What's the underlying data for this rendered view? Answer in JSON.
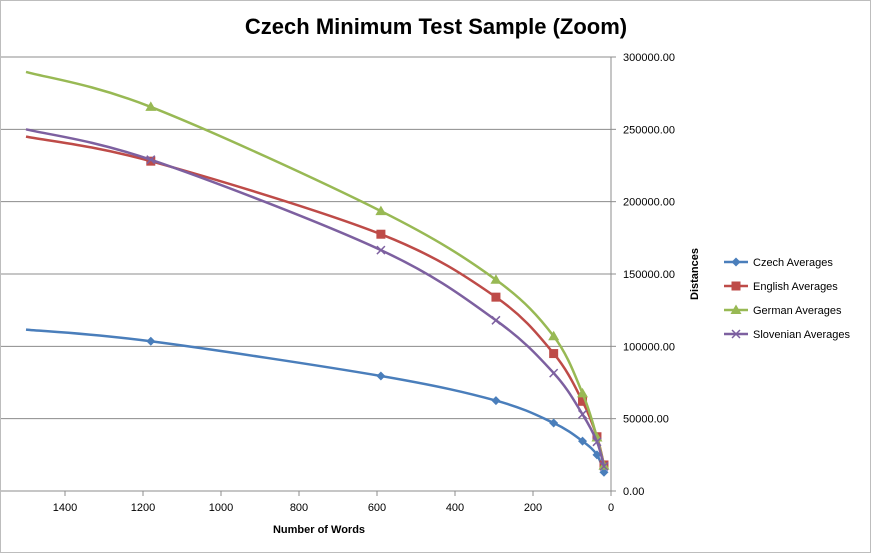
{
  "chart_data": {
    "type": "line",
    "title": "Czech Minimum Test Sample (Zoom)",
    "xlabel": "Number of Words",
    "ylabel": "Distances",
    "x_reversed": true,
    "xlim": [
      0,
      1500
    ],
    "ylim": [
      0,
      300000
    ],
    "x_ticks": [
      1400,
      1200,
      1000,
      800,
      600,
      400,
      200,
      0
    ],
    "y_ticks": [
      0,
      50000,
      100000,
      150000,
      200000,
      250000,
      300000
    ],
    "x_tick_labels": [
      "1400",
      "1200",
      "1000",
      "800",
      "600",
      "400",
      "200",
      "0"
    ],
    "y_tick_labels": [
      "0.00",
      "50000.00",
      "100000.00",
      "150000.00",
      "200000.00",
      "250000.00",
      "300000.00"
    ],
    "y_axis_side": "right",
    "grid": "horizontal",
    "legend_position": "right",
    "series": [
      {
        "name": "Czech Averages",
        "color": "#4a7ebb",
        "marker": "diamond",
        "points": [
          [
            1180,
            103500
          ],
          [
            590,
            79500
          ],
          [
            295,
            62500
          ],
          [
            147,
            47000
          ],
          [
            73,
            34500
          ],
          [
            36,
            25000
          ],
          [
            18,
            13000
          ]
        ]
      },
      {
        "name": "English Averages",
        "color": "#be4b48",
        "marker": "square",
        "points": [
          [
            1180,
            228000
          ],
          [
            590,
            177500
          ],
          [
            295,
            134000
          ],
          [
            147,
            95000
          ],
          [
            73,
            62000
          ],
          [
            36,
            37500
          ],
          [
            18,
            18000
          ]
        ]
      },
      {
        "name": "German Averages",
        "color": "#98b954",
        "marker": "triangle",
        "points": [
          [
            1180,
            265500
          ],
          [
            590,
            193500
          ],
          [
            295,
            146000
          ],
          [
            147,
            107000
          ],
          [
            73,
            67500
          ],
          [
            36,
            37000
          ],
          [
            18,
            17500
          ]
        ]
      },
      {
        "name": "Slovenian Averages",
        "color": "#7d60a0",
        "marker": "x",
        "points": [
          [
            1180,
            229000
          ],
          [
            590,
            166500
          ],
          [
            295,
            118000
          ],
          [
            147,
            81500
          ],
          [
            73,
            53000
          ],
          [
            36,
            34000
          ],
          [
            18,
            17000
          ]
        ]
      }
    ]
  }
}
